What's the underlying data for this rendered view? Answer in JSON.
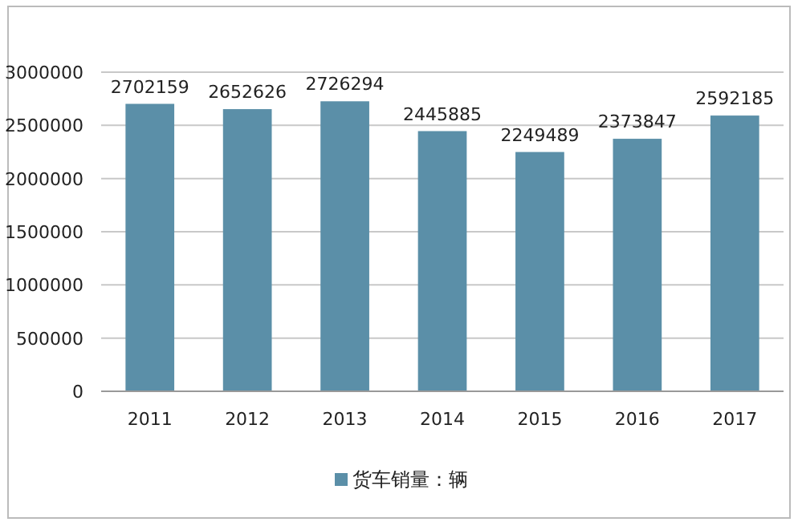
{
  "chart_data": {
    "type": "bar",
    "categories": [
      "2011",
      "2012",
      "2013",
      "2014",
      "2015",
      "2016",
      "2017"
    ],
    "series": [
      {
        "name": "货车销量：辆",
        "color": "#5b8fa8",
        "values": [
          2702159,
          2652626,
          2726294,
          2445885,
          2249489,
          2373847,
          2592185
        ]
      }
    ],
    "ylim": [
      0,
      3000000
    ],
    "yticks": [
      0,
      500000,
      1000000,
      1500000,
      2000000,
      2500000,
      3000000
    ],
    "grid": "y",
    "legend": "bottom",
    "data_labels": true
  }
}
